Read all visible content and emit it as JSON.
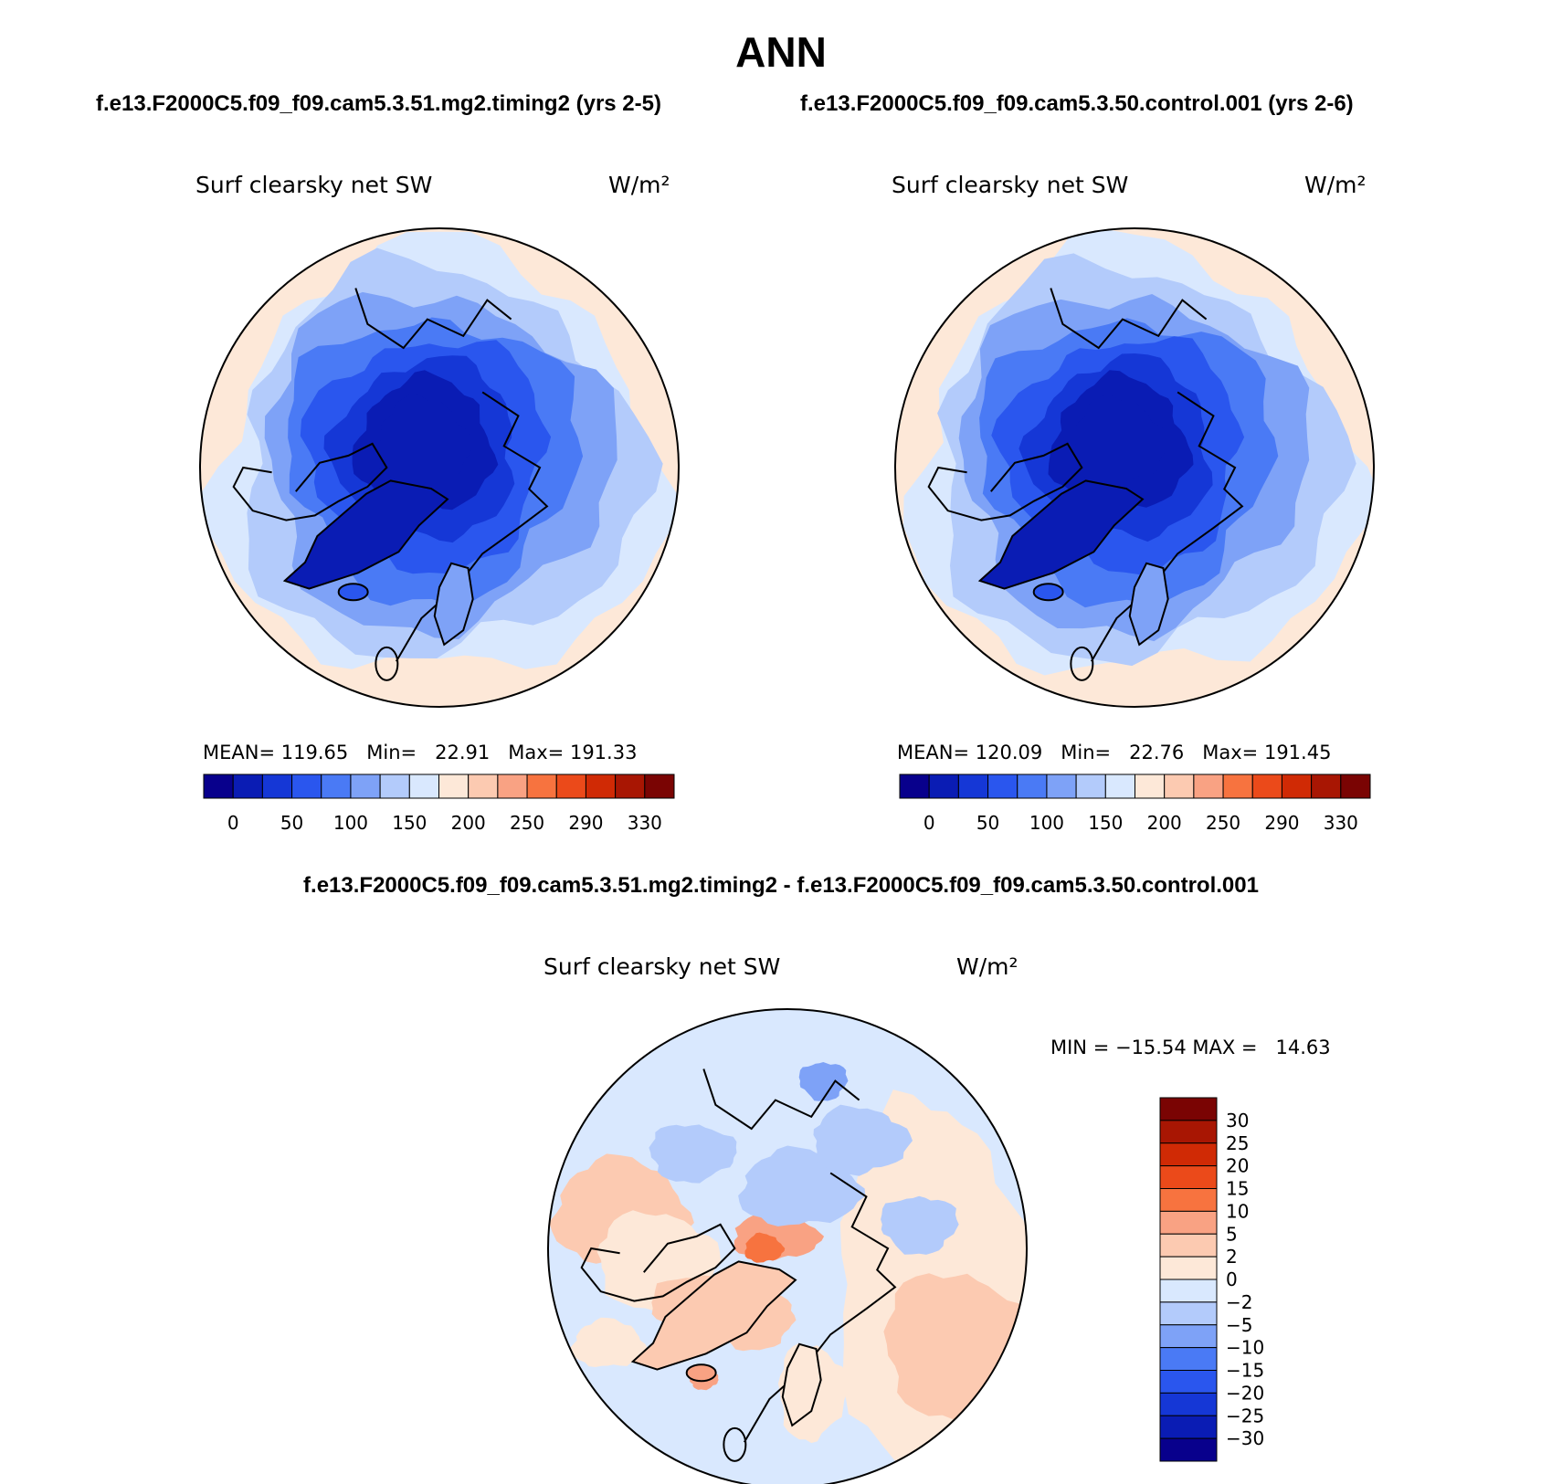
{
  "header": {
    "title": "ANN",
    "case1": "f.e13.F2000C5.f09_f09.cam5.3.51.mg2.timing2 (yrs 2-5)",
    "case2": "f.e13.F2000C5.f09_f09.cam5.3.50.control.001 (yrs 2-6)",
    "diff_title": "f.e13.F2000C5.f09_f09.cam5.3.51.mg2.timing2 - f.e13.F2000C5.f09_f09.cam5.3.50.control.001"
  },
  "palette": {
    "abs": [
      "#08008c",
      "#0a1cb4",
      "#1537d6",
      "#2a56ee",
      "#4a7af5",
      "#7ea2f7",
      "#b3cbfb",
      "#d9e8fe",
      "#fde8d8",
      "#fccab1",
      "#f9a283",
      "#f7733f",
      "#eb4a1a",
      "#d02a05",
      "#a81603",
      "#7a0403"
    ],
    "diff": [
      "#08008c",
      "#0a1cb4",
      "#1537d6",
      "#2a56ee",
      "#4a7af5",
      "#7ea2f7",
      "#b3cbfb",
      "#d9e8fe",
      "#fde8d8",
      "#fccab1",
      "#f9a283",
      "#f7733f",
      "#eb4a1a",
      "#d02a05",
      "#a81603",
      "#7a0403"
    ]
  },
  "chart_data": [
    {
      "type": "heatmap",
      "projection": "north polar stereographic",
      "panel": "test",
      "title": "Surf clearsky net SW",
      "units": "W/m²",
      "stats": {
        "mean": "119.65",
        "min": "22.91",
        "max": "191.33"
      },
      "stats_text": "MEAN= 119.65   Min=   22.91   Max= 191.33",
      "colorbar": {
        "orientation": "horizontal",
        "levels": [
          0,
          25,
          50,
          75,
          100,
          125,
          150,
          175,
          200,
          225,
          250,
          270,
          290,
          310,
          330
        ],
        "tick_labels": [
          "0",
          "50",
          "100",
          "150",
          "200",
          "250",
          "290",
          "330"
        ]
      },
      "field_rings": [
        6,
        5,
        4,
        3,
        2,
        1,
        1,
        0
      ]
    },
    {
      "type": "heatmap",
      "projection": "north polar stereographic",
      "panel": "control",
      "title": "Surf clearsky net SW",
      "units": "W/m²",
      "stats": {
        "mean": "120.09",
        "min": "22.76",
        "max": "191.45"
      },
      "stats_text": "MEAN= 120.09   Min=   22.76   Max= 191.45",
      "colorbar": {
        "orientation": "horizontal",
        "levels": [
          0,
          25,
          50,
          75,
          100,
          125,
          150,
          175,
          200,
          225,
          250,
          270,
          290,
          310,
          330
        ],
        "tick_labels": [
          "0",
          "50",
          "100",
          "150",
          "200",
          "250",
          "290",
          "330"
        ]
      },
      "field_rings": [
        6,
        5,
        4,
        3,
        2,
        1,
        1,
        0
      ]
    },
    {
      "type": "heatmap",
      "projection": "north polar stereographic",
      "panel": "difference",
      "title": "Surf clearsky net SW",
      "units": "W/m²",
      "stats": {
        "min": "-15.54",
        "max": "14.63"
      },
      "stats_text": "MIN = −15.54 MAX =   14.63",
      "colorbar": {
        "orientation": "vertical",
        "levels": [
          -30,
          -25,
          -20,
          -15,
          -10,
          -5,
          -2,
          0,
          2,
          5,
          10,
          15,
          20,
          25,
          30
        ],
        "tick_labels": [
          "30",
          "25",
          "20",
          "15",
          "10",
          "5",
          "2",
          "0",
          "−2",
          "−5",
          "−10",
          "−15",
          "−20",
          "−25",
          "−30"
        ]
      }
    }
  ]
}
